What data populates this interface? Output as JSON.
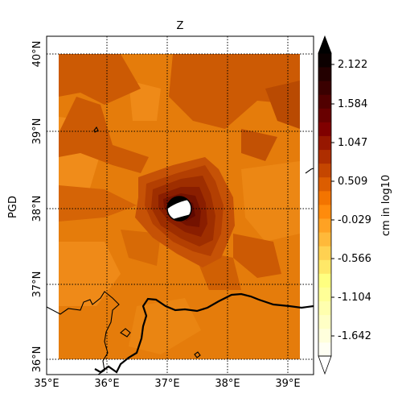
{
  "map": {
    "title": "Z",
    "side_label": "PGD",
    "lon_ticks": [
      "35°E",
      "36°E",
      "37°E",
      "38°E",
      "39°E"
    ],
    "lat_ticks": [
      "36°N",
      "37°N",
      "38°N",
      "39°N",
      "40°N"
    ],
    "lon_range": [
      35.0,
      39.45
    ],
    "lat_range": [
      35.87,
      40.22
    ],
    "grid": true,
    "colormap": "afmhot_r",
    "colorbar": {
      "label": "cm in log10",
      "ticks": [
        "-1.642",
        "-1.104",
        "-0.566",
        "-0.029",
        "0.509",
        "1.047",
        "1.584",
        "2.122"
      ],
      "levels": 22,
      "extend": "both"
    },
    "beachball": {
      "lon": 37.2,
      "lat": 38.0
    },
    "colors": {
      "bg_field": "#e57c0b",
      "high": "#4c0000",
      "coast": "#000000"
    }
  }
}
